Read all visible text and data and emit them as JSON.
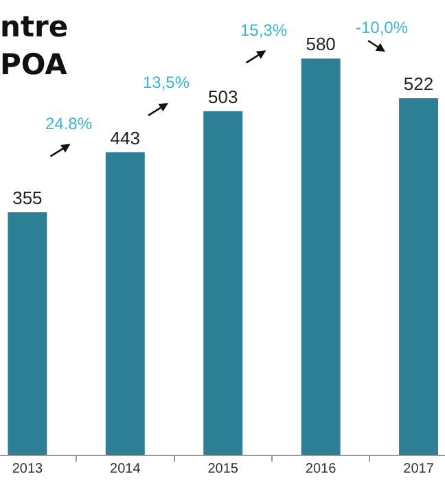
{
  "chart_data": {
    "type": "bar",
    "title": "ntre\nPOA",
    "categories": [
      "2013",
      "2014",
      "2015",
      "2016",
      "2017"
    ],
    "values": [
      355,
      443,
      503,
      580,
      522
    ],
    "color": "#2e7f96",
    "data_labels": true,
    "grid": false,
    "annotations": [
      "24.8%",
      "13,5%",
      "15,3%",
      "-10,0%"
    ]
  }
}
